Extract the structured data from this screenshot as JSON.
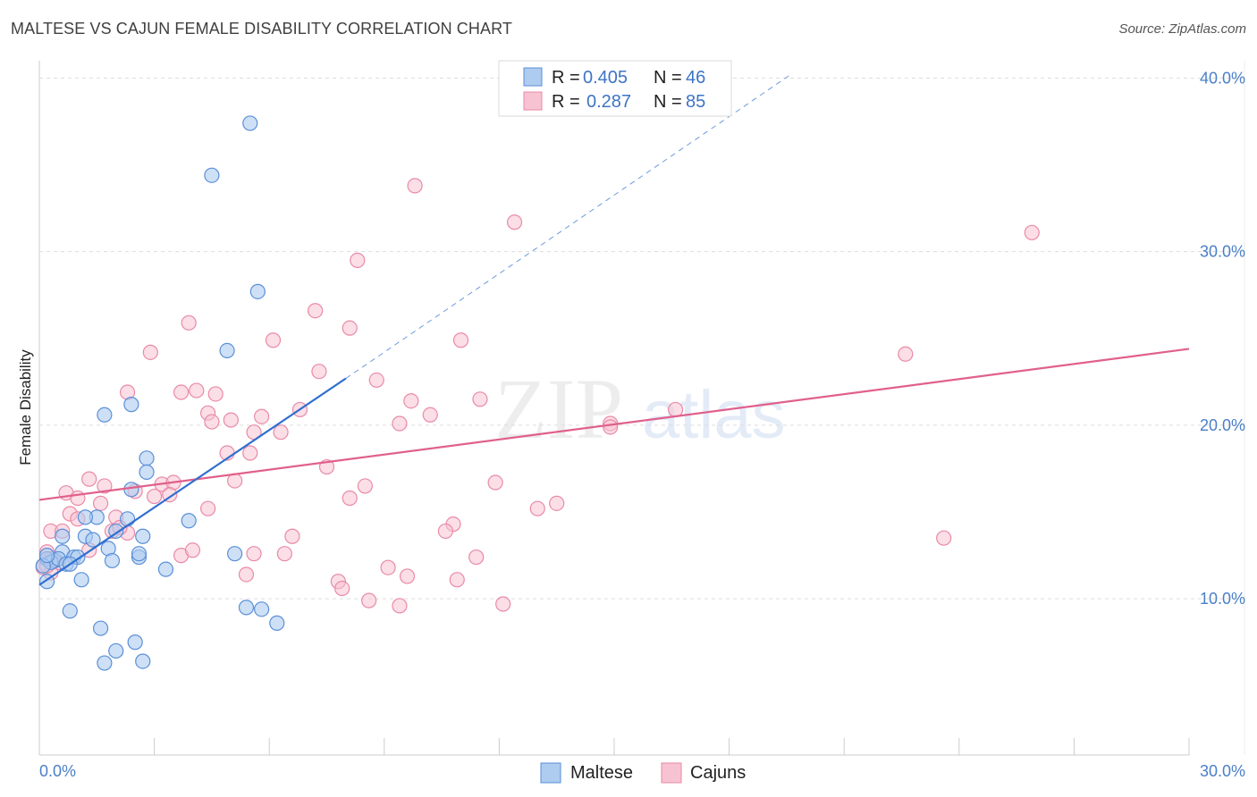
{
  "title": "MALTESE VS CAJUN FEMALE DISABILITY CORRELATION CHART",
  "source": "Source: ZipAtlas.com",
  "watermark": {
    "zip": "ZIP",
    "atlas": "atlas"
  },
  "colors": {
    "maltese_fill": "#aecbf0",
    "maltese_stroke": "#5a8fd8",
    "maltese_line": "#2f6fcf",
    "cajun_fill": "#f7c3d2",
    "cajun_stroke": "#e98aa8",
    "cajun_line": "#e0608c",
    "grid": "#dddddd",
    "tick_label": "#4a7fc8"
  },
  "legend_stats": [
    {
      "series": "Maltese",
      "r_label": "R =",
      "r_value": "0.405",
      "n_label": "N =",
      "n_value": "46"
    },
    {
      "series": "Cajuns",
      "r_label": "R =",
      "r_value": "0.287",
      "n_label": "N =",
      "n_value": "85"
    }
  ],
  "chart_data": {
    "type": "scatter",
    "title": "MALTESE VS CAJUN FEMALE DISABILITY CORRELATION CHART",
    "xlabel": "",
    "ylabel": "Female Disability",
    "xlim": [
      0,
      30
    ],
    "ylim": [
      1,
      41
    ],
    "x_tick_labels": [
      "0.0%",
      "30.0%"
    ],
    "y_ticks": [
      10,
      20,
      30,
      40
    ],
    "y_tick_labels": [
      "10.0%",
      "20.0%",
      "30.0%",
      "40.0%"
    ],
    "legend_position": "bottom-center",
    "series": [
      {
        "name": "Maltese",
        "points": [
          [
            5.5,
            37.4
          ],
          [
            4.5,
            34.4
          ],
          [
            5.7,
            27.7
          ],
          [
            4.9,
            24.3
          ],
          [
            1.7,
            20.6
          ],
          [
            2.4,
            21.2
          ],
          [
            2.8,
            18.1
          ],
          [
            2.8,
            17.3
          ],
          [
            2.4,
            16.3
          ],
          [
            3.9,
            14.5
          ],
          [
            1.5,
            14.7
          ],
          [
            1.2,
            14.7
          ],
          [
            2.3,
            14.6
          ],
          [
            0.6,
            13.6
          ],
          [
            1.2,
            13.6
          ],
          [
            1.4,
            13.4
          ],
          [
            2.0,
            13.9
          ],
          [
            2.7,
            13.6
          ],
          [
            1.8,
            12.9
          ],
          [
            0.6,
            12.7
          ],
          [
            0.4,
            12.2
          ],
          [
            0.9,
            12.4
          ],
          [
            1.0,
            12.4
          ],
          [
            0.2,
            12.3
          ],
          [
            0.3,
            12.1
          ],
          [
            0.5,
            12.3
          ],
          [
            0.7,
            12.0
          ],
          [
            0.8,
            12.0
          ],
          [
            0.1,
            11.9
          ],
          [
            1.9,
            12.2
          ],
          [
            2.6,
            12.4
          ],
          [
            2.6,
            12.6
          ],
          [
            5.1,
            12.6
          ],
          [
            3.3,
            11.7
          ],
          [
            1.1,
            11.1
          ],
          [
            0.2,
            11.0
          ],
          [
            0.8,
            9.3
          ],
          [
            5.4,
            9.5
          ],
          [
            5.8,
            9.4
          ],
          [
            6.2,
            8.6
          ],
          [
            1.6,
            8.3
          ],
          [
            2.5,
            7.5
          ],
          [
            2.0,
            7.0
          ],
          [
            1.7,
            6.3
          ],
          [
            2.7,
            6.4
          ],
          [
            0.2,
            12.5
          ]
        ],
        "trend": {
          "x1": 0.0,
          "y1": 10.8,
          "x2": 8.0,
          "y2": 22.7,
          "dash_x2": 19.6,
          "dash_y2": 40.2
        }
      },
      {
        "name": "Cajuns",
        "points": [
          [
            9.8,
            33.8
          ],
          [
            12.4,
            31.7
          ],
          [
            25.9,
            31.1
          ],
          [
            8.3,
            29.5
          ],
          [
            7.2,
            26.6
          ],
          [
            3.9,
            25.9
          ],
          [
            8.1,
            25.6
          ],
          [
            6.1,
            24.9
          ],
          [
            11.0,
            24.9
          ],
          [
            2.9,
            24.2
          ],
          [
            22.6,
            24.1
          ],
          [
            7.3,
            23.1
          ],
          [
            8.8,
            22.6
          ],
          [
            2.3,
            21.9
          ],
          [
            3.7,
            21.9
          ],
          [
            4.1,
            22.0
          ],
          [
            4.6,
            21.8
          ],
          [
            11.5,
            21.5
          ],
          [
            9.7,
            21.4
          ],
          [
            6.8,
            20.9
          ],
          [
            16.6,
            20.9
          ],
          [
            4.4,
            20.7
          ],
          [
            10.2,
            20.6
          ],
          [
            5.8,
            20.5
          ],
          [
            4.5,
            20.2
          ],
          [
            5.0,
            20.3
          ],
          [
            9.4,
            20.1
          ],
          [
            14.9,
            20.1
          ],
          [
            14.9,
            19.9
          ],
          [
            5.6,
            19.6
          ],
          [
            6.3,
            19.6
          ],
          [
            4.9,
            18.4
          ],
          [
            5.5,
            18.4
          ],
          [
            7.5,
            17.6
          ],
          [
            1.3,
            16.9
          ],
          [
            5.1,
            16.8
          ],
          [
            8.5,
            16.5
          ],
          [
            11.9,
            16.7
          ],
          [
            1.7,
            16.5
          ],
          [
            3.2,
            16.6
          ],
          [
            3.5,
            16.7
          ],
          [
            0.7,
            16.1
          ],
          [
            1.0,
            15.8
          ],
          [
            2.5,
            16.2
          ],
          [
            3.4,
            16.0
          ],
          [
            3.0,
            15.9
          ],
          [
            8.1,
            15.8
          ],
          [
            1.6,
            15.5
          ],
          [
            4.4,
            15.2
          ],
          [
            13.0,
            15.2
          ],
          [
            13.5,
            15.5
          ],
          [
            0.8,
            14.9
          ],
          [
            1.0,
            14.6
          ],
          [
            2.0,
            14.7
          ],
          [
            10.8,
            14.3
          ],
          [
            0.3,
            13.9
          ],
          [
            0.6,
            13.9
          ],
          [
            1.9,
            13.9
          ],
          [
            2.3,
            13.8
          ],
          [
            2.1,
            14.1
          ],
          [
            6.6,
            13.6
          ],
          [
            10.6,
            13.9
          ],
          [
            23.6,
            13.5
          ],
          [
            1.3,
            12.8
          ],
          [
            3.7,
            12.5
          ],
          [
            5.6,
            12.6
          ],
          [
            4.0,
            12.8
          ],
          [
            6.4,
            12.6
          ],
          [
            0.2,
            12.7
          ],
          [
            0.4,
            12.2
          ],
          [
            11.4,
            12.4
          ],
          [
            0.1,
            11.8
          ],
          [
            0.3,
            11.5
          ],
          [
            9.1,
            11.8
          ],
          [
            5.4,
            11.4
          ],
          [
            9.6,
            11.3
          ],
          [
            7.8,
            11.0
          ],
          [
            7.9,
            10.6
          ],
          [
            10.9,
            11.1
          ],
          [
            8.6,
            9.9
          ],
          [
            9.4,
            9.6
          ],
          [
            12.1,
            9.7
          ],
          [
            0.2,
            11.9
          ],
          [
            0.5,
            12.1
          ],
          [
            0.3,
            12.3
          ]
        ],
        "trend": {
          "x1": 0.0,
          "y1": 15.7,
          "x2": 30.0,
          "y2": 24.4
        }
      }
    ]
  }
}
